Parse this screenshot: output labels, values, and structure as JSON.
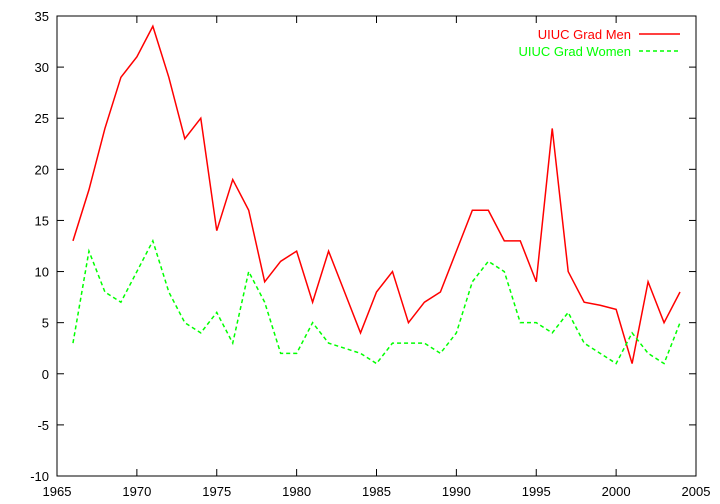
{
  "chart_data": {
    "type": "line",
    "title": "",
    "xlabel": "",
    "ylabel": "",
    "xlim": [
      1965,
      2005
    ],
    "ylim": [
      -10,
      35
    ],
    "xticks": [
      1965,
      1970,
      1975,
      1980,
      1985,
      1990,
      1995,
      2000,
      2005
    ],
    "yticks": [
      -10,
      -5,
      0,
      5,
      10,
      15,
      20,
      25,
      30,
      35
    ],
    "grid": false,
    "legend_position": "top-right",
    "series": [
      {
        "name": "UIUC Grad Men",
        "color": "#ff0000",
        "dash": "solid",
        "x": [
          1966,
          1967,
          1968,
          1969,
          1970,
          1971,
          1972,
          1973,
          1974,
          1975,
          1976,
          1977,
          1978,
          1979,
          1980,
          1981,
          1982,
          1983,
          1984,
          1985,
          1986,
          1987,
          1988,
          1989,
          1990,
          1991,
          1992,
          1993,
          1994,
          1995,
          1996,
          1997,
          1998,
          1999,
          2000,
          2001,
          2002,
          2003,
          2004
        ],
        "y": [
          13,
          18,
          24,
          29,
          31,
          34,
          29,
          23,
          25,
          14,
          19,
          16,
          9,
          11,
          12,
          7,
          12,
          8,
          4,
          8,
          10,
          5,
          7,
          8,
          12,
          16,
          16,
          13,
          13,
          9,
          24,
          10,
          7,
          6.7,
          6.3,
          1,
          9,
          5,
          8
        ]
      },
      {
        "name": "UIUC Grad Women",
        "color": "#00ff00",
        "dash": "dashed",
        "x": [
          1966,
          1967,
          1968,
          1969,
          1970,
          1971,
          1972,
          1973,
          1974,
          1975,
          1976,
          1977,
          1978,
          1979,
          1980,
          1981,
          1982,
          1983,
          1984,
          1985,
          1986,
          1987,
          1988,
          1989,
          1990,
          1991,
          1992,
          1993,
          1994,
          1995,
          1996,
          1997,
          1998,
          1999,
          2000,
          2001,
          2002,
          2003,
          2004
        ],
        "y": [
          3,
          12,
          8,
          7,
          10,
          13,
          8,
          5,
          4,
          6,
          3,
          10,
          7,
          2,
          2,
          5,
          3,
          2.5,
          2,
          1,
          3,
          3,
          3,
          2,
          4,
          9,
          11,
          10,
          5,
          5,
          4,
          6,
          3,
          2,
          1,
          4,
          2,
          1,
          5
        ]
      }
    ]
  }
}
